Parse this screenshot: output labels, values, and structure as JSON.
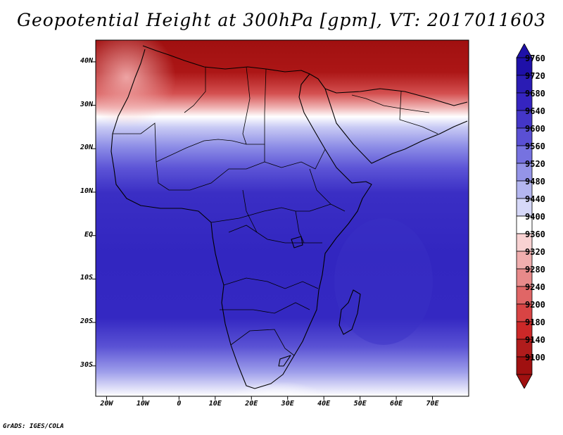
{
  "title": "Geopotential Height at 300hPa [gpm], VT: 2017011603",
  "credit": "GrADS: IGES/COLA",
  "map": {
    "lat_labels": [
      "40N",
      "30N",
      "20N",
      "10N",
      "EQ",
      "10S",
      "20S",
      "30S"
    ],
    "lon_labels": [
      "20W",
      "10W",
      "0",
      "10E",
      "20E",
      "30E",
      "40E",
      "50E",
      "60E",
      "70E"
    ],
    "lat_range": [
      -37,
      45
    ],
    "lon_range": [
      -23,
      80
    ]
  },
  "colorbar": {
    "levels": [
      "9760",
      "9720",
      "9680",
      "9640",
      "9600",
      "9560",
      "9520",
      "9480",
      "9440",
      "9400",
      "9360",
      "9320",
      "9280",
      "9240",
      "9200",
      "9180",
      "9140",
      "9100"
    ],
    "colors": [
      "#1e10a8",
      "#2a1cb4",
      "#3524c0",
      "#4436c8",
      "#5a50d4",
      "#7672e0",
      "#9494e8",
      "#b4b6f0",
      "#d6d8f8",
      "#ffffff",
      "#f8d2d2",
      "#f0aeae",
      "#e88a8a",
      "#e06666",
      "#d84444",
      "#cc2828",
      "#b01c1c",
      "#a01010"
    ]
  },
  "chart_data": {
    "type": "heatmap",
    "title": "Geopotential Height at 300hPa [gpm], VT: 2017011603",
    "units": "gpm",
    "x_ticks": [
      "20W",
      "10W",
      "0",
      "10E",
      "20E",
      "30E",
      "40E",
      "50E",
      "60E",
      "70E"
    ],
    "y_ticks": [
      "40N",
      "30N",
      "20N",
      "10N",
      "EQ",
      "10S",
      "20S",
      "30S"
    ],
    "contour_levels": [
      9100,
      9140,
      9180,
      9200,
      9240,
      9280,
      9320,
      9360,
      9400,
      9440,
      9480,
      9520,
      9560,
      9600,
      9640,
      9680,
      9720,
      9760
    ],
    "latitude_profile": [
      {
        "lat": 42,
        "value": 9130
      },
      {
        "lat": 34,
        "value": 9200
      },
      {
        "lat": 30,
        "value": 9330
      },
      {
        "lat": 25,
        "value": 9420
      },
      {
        "lat": 20,
        "value": 9520
      },
      {
        "lat": 15,
        "value": 9600
      },
      {
        "lat": 10,
        "value": 9660
      },
      {
        "lat": 0,
        "value": 9690
      },
      {
        "lat": -10,
        "value": 9700
      },
      {
        "lat": -20,
        "value": 9700
      },
      {
        "lat": -28,
        "value": 9620
      },
      {
        "lat": -33,
        "value": 9500
      },
      {
        "lat": -36,
        "value": 9420
      }
    ]
  }
}
